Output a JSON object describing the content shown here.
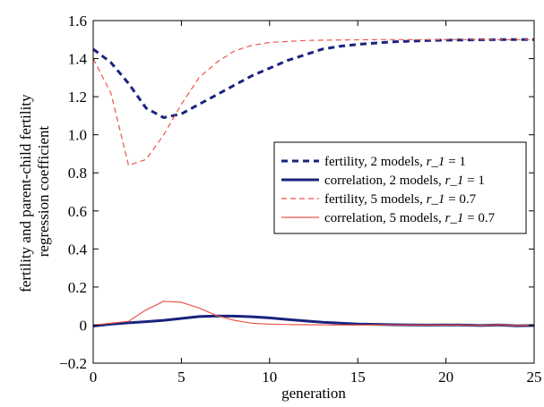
{
  "chart_data": {
    "type": "line",
    "title": "",
    "xlabel": "generation",
    "ylabel": [
      "fertility and parent-child fertility",
      "regression coefficient"
    ],
    "xlim": [
      0,
      25
    ],
    "ylim": [
      -0.2,
      1.6
    ],
    "xticks": [
      0,
      5,
      10,
      15,
      20,
      25
    ],
    "yticks": [
      -0.2,
      0,
      0.2,
      0.4,
      0.6,
      0.8,
      1.0,
      1.2,
      1.4,
      1.6
    ],
    "xtick_labels": [
      "0",
      "5",
      "10",
      "15",
      "20",
      "25"
    ],
    "ytick_labels": [
      "−0.2",
      "0",
      "0.2",
      "0.4",
      "0.6",
      "0.8",
      "1.0",
      "1.2",
      "1.4",
      "1.6"
    ],
    "grid": false,
    "legend_position": "right",
    "series": [
      {
        "name": "fertility, 2 models, r_1 = 1",
        "legend_prefix": "fertility, 2 models, ",
        "legend_var": "r_1",
        "legend_suffix": " = 1",
        "color": "#1a237e",
        "style": "dashed-thick",
        "x": [
          0,
          1,
          2,
          3,
          4,
          5,
          6,
          7,
          8,
          9,
          10,
          11,
          12,
          13,
          14,
          15,
          16,
          17,
          18,
          19,
          20,
          21,
          22,
          23,
          24,
          25
        ],
        "y": [
          1.45,
          1.38,
          1.27,
          1.14,
          1.09,
          1.11,
          1.16,
          1.21,
          1.26,
          1.31,
          1.35,
          1.39,
          1.42,
          1.45,
          1.465,
          1.475,
          1.482,
          1.488,
          1.492,
          1.495,
          1.497,
          1.498,
          1.499,
          1.5,
          1.5,
          1.5
        ]
      },
      {
        "name": "correlation, 2 models, r_1 = 1",
        "legend_prefix": "correlation, 2 models, ",
        "legend_var": "r_1",
        "legend_suffix": " = 1",
        "color": "#1a237e",
        "style": "solid-thick",
        "x": [
          0,
          1,
          2,
          3,
          4,
          5,
          6,
          7,
          8,
          9,
          10,
          11,
          12,
          13,
          14,
          15,
          16,
          17,
          18,
          19,
          20,
          21,
          22,
          23,
          24,
          25
        ],
        "y": [
          -0.005,
          0.005,
          0.012,
          0.018,
          0.025,
          0.035,
          0.045,
          0.048,
          0.047,
          0.044,
          0.038,
          0.03,
          0.022,
          0.015,
          0.01,
          0.006,
          0.004,
          0.002,
          0.001,
          0.0,
          0.001,
          0.0,
          -0.002,
          0.001,
          -0.004,
          -0.002
        ]
      },
      {
        "name": "fertility, 5 models, r_1 = 0.7",
        "legend_prefix": "fertility, 5 models, ",
        "legend_var": "r_1",
        "legend_suffix": " = 0.7",
        "color": "#e8574a",
        "style": "dashed-thin",
        "x": [
          0,
          1,
          2,
          3,
          4,
          5,
          6,
          7,
          8,
          9,
          10,
          11,
          12,
          13,
          14,
          15,
          16,
          17,
          18,
          19,
          20,
          21,
          22,
          23,
          24,
          25
        ],
        "y": [
          1.4,
          1.22,
          0.84,
          0.87,
          1.0,
          1.16,
          1.3,
          1.38,
          1.44,
          1.47,
          1.485,
          1.49,
          1.495,
          1.497,
          1.498,
          1.499,
          1.5,
          1.5,
          1.5,
          1.5,
          1.5,
          1.5,
          1.5,
          1.5,
          1.5,
          1.5
        ]
      },
      {
        "name": "correlation, 5 models, r_1 = 0.7",
        "legend_prefix": "correlation, 5 models, ",
        "legend_var": "r_1",
        "legend_suffix": " = 0.7",
        "color": "#e8574a",
        "style": "solid-thin",
        "x": [
          0,
          1,
          2,
          3,
          4,
          5,
          6,
          7,
          8,
          9,
          10,
          11,
          12,
          13,
          14,
          15,
          16,
          17,
          18,
          19,
          20,
          21,
          22,
          23,
          24,
          25
        ],
        "y": [
          0.0,
          0.01,
          0.02,
          0.08,
          0.125,
          0.12,
          0.09,
          0.05,
          0.025,
          0.01,
          0.005,
          0.003,
          0.002,
          0.001,
          0.0,
          0.0,
          0.0,
          0.001,
          0.0,
          0.0,
          0.0,
          0.0,
          -0.002,
          0.002,
          -0.003,
          0.0
        ]
      }
    ]
  }
}
